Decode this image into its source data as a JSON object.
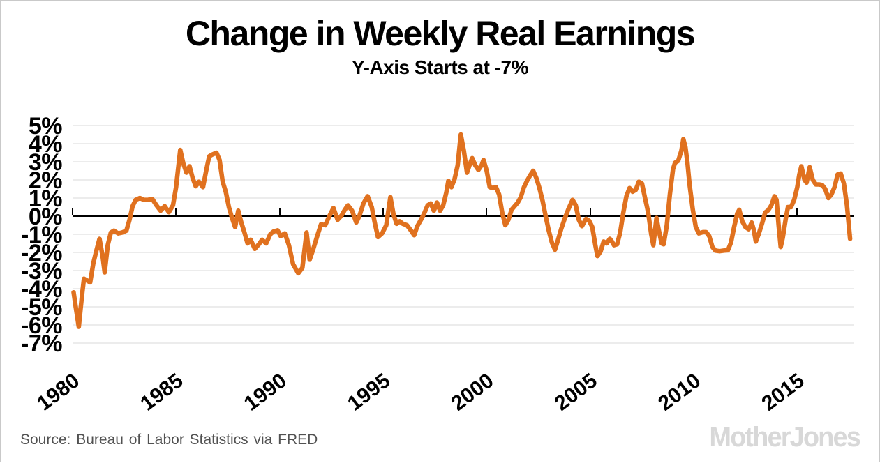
{
  "header": {
    "title": "Change in Weekly Real Earnings",
    "subtitle": "Y-Axis Starts at -7%"
  },
  "footer": {
    "source": "Source: Bureau of Labor Statistics via FRED",
    "logo": "MotherJones"
  },
  "chart_data": {
    "type": "line",
    "title": "Change in Weekly Real Earnings",
    "subtitle": "Y-Axis Starts at -7%",
    "xlabel": "",
    "ylabel": "",
    "xlim": [
      1980,
      2017.75
    ],
    "ylim": [
      -7,
      5
    ],
    "grid": "horizontal",
    "zero_axis": true,
    "x_ticks": [
      1980,
      1985,
      1990,
      1995,
      2000,
      2005,
      2010,
      2015
    ],
    "x_tick_labels": [
      "1980",
      "1985",
      "1990",
      "1995",
      "2000",
      "2005",
      "2010",
      "2015"
    ],
    "y_ticks": [
      5,
      4,
      3,
      2,
      1,
      0,
      -1,
      -2,
      -3,
      -4,
      -5,
      -6,
      -7
    ],
    "y_tick_labels": [
      "5%",
      "4%",
      "3%",
      "2%",
      "1%",
      "0%",
      "-1%",
      "-2%",
      "-3%",
      "-4%",
      "-5%",
      "-6%",
      "-7%"
    ],
    "colors": {
      "series": "#E0711F",
      "axis": "#000000",
      "grid": "#D9D9D9"
    },
    "series": [
      {
        "name": "Change in weekly real earnings (year-over-year %)",
        "color": "#E0711F",
        "points": [
          [
            1980.05,
            -4.2
          ],
          [
            1980.15,
            -5.0
          ],
          [
            1980.3,
            -6.1
          ],
          [
            1980.45,
            -4.4
          ],
          [
            1980.55,
            -3.45
          ],
          [
            1980.7,
            -3.55
          ],
          [
            1980.85,
            -3.65
          ],
          [
            1981.0,
            -2.6
          ],
          [
            1981.15,
            -1.9
          ],
          [
            1981.3,
            -1.25
          ],
          [
            1981.45,
            -2.2
          ],
          [
            1981.55,
            -3.1
          ],
          [
            1981.7,
            -1.6
          ],
          [
            1981.85,
            -0.9
          ],
          [
            1982.0,
            -0.8
          ],
          [
            1982.2,
            -0.95
          ],
          [
            1982.4,
            -0.9
          ],
          [
            1982.6,
            -0.8
          ],
          [
            1982.75,
            -0.2
          ],
          [
            1982.9,
            0.55
          ],
          [
            1983.05,
            0.9
          ],
          [
            1983.25,
            1.0
          ],
          [
            1983.45,
            0.9
          ],
          [
            1983.65,
            0.9
          ],
          [
            1983.85,
            0.95
          ],
          [
            1984.05,
            0.6
          ],
          [
            1984.25,
            0.3
          ],
          [
            1984.45,
            0.55
          ],
          [
            1984.65,
            0.22
          ],
          [
            1984.85,
            0.6
          ],
          [
            1985.0,
            1.6
          ],
          [
            1985.2,
            3.65
          ],
          [
            1985.35,
            2.9
          ],
          [
            1985.5,
            2.4
          ],
          [
            1985.65,
            2.75
          ],
          [
            1985.8,
            2.1
          ],
          [
            1985.95,
            1.65
          ],
          [
            1986.1,
            1.9
          ],
          [
            1986.3,
            1.6
          ],
          [
            1986.45,
            2.5
          ],
          [
            1986.6,
            3.3
          ],
          [
            1986.75,
            3.4
          ],
          [
            1986.95,
            3.5
          ],
          [
            1987.1,
            3.1
          ],
          [
            1987.25,
            1.9
          ],
          [
            1987.4,
            1.35
          ],
          [
            1987.55,
            0.5
          ],
          [
            1987.7,
            -0.1
          ],
          [
            1987.85,
            -0.6
          ],
          [
            1988.0,
            0.3
          ],
          [
            1988.15,
            -0.35
          ],
          [
            1988.3,
            -0.9
          ],
          [
            1988.45,
            -1.5
          ],
          [
            1988.6,
            -1.3
          ],
          [
            1988.8,
            -1.8
          ],
          [
            1989.0,
            -1.55
          ],
          [
            1989.15,
            -1.3
          ],
          [
            1989.35,
            -1.5
          ],
          [
            1989.55,
            -1.0
          ],
          [
            1989.7,
            -0.85
          ],
          [
            1989.9,
            -0.78
          ],
          [
            1990.05,
            -1.1
          ],
          [
            1990.25,
            -0.95
          ],
          [
            1990.45,
            -1.6
          ],
          [
            1990.65,
            -2.65
          ],
          [
            1990.9,
            -3.15
          ],
          [
            1991.1,
            -2.85
          ],
          [
            1991.3,
            -0.9
          ],
          [
            1991.45,
            -2.4
          ],
          [
            1991.6,
            -1.9
          ],
          [
            1991.8,
            -1.15
          ],
          [
            1992.0,
            -0.45
          ],
          [
            1992.2,
            -0.5
          ],
          [
            1992.4,
            0.0
          ],
          [
            1992.6,
            0.45
          ],
          [
            1992.8,
            -0.2
          ],
          [
            1993.0,
            0.05
          ],
          [
            1993.15,
            0.35
          ],
          [
            1993.3,
            0.6
          ],
          [
            1993.5,
            0.3
          ],
          [
            1993.7,
            -0.35
          ],
          [
            1993.85,
            0.0
          ],
          [
            1994.05,
            0.7
          ],
          [
            1994.25,
            1.1
          ],
          [
            1994.45,
            0.5
          ],
          [
            1994.6,
            -0.4
          ],
          [
            1994.75,
            -1.15
          ],
          [
            1994.95,
            -0.95
          ],
          [
            1995.15,
            -0.5
          ],
          [
            1995.35,
            1.05
          ],
          [
            1995.5,
            0.1
          ],
          [
            1995.65,
            -0.42
          ],
          [
            1995.8,
            -0.28
          ],
          [
            1995.95,
            -0.42
          ],
          [
            1996.15,
            -0.5
          ],
          [
            1996.35,
            -0.8
          ],
          [
            1996.5,
            -1.05
          ],
          [
            1996.65,
            -0.55
          ],
          [
            1996.85,
            -0.15
          ],
          [
            1997.0,
            0.2
          ],
          [
            1997.15,
            0.6
          ],
          [
            1997.3,
            0.7
          ],
          [
            1997.45,
            0.3
          ],
          [
            1997.6,
            0.75
          ],
          [
            1997.75,
            0.3
          ],
          [
            1997.9,
            0.6
          ],
          [
            1998.05,
            1.3
          ],
          [
            1998.15,
            1.95
          ],
          [
            1998.3,
            1.6
          ],
          [
            1998.45,
            2.05
          ],
          [
            1998.6,
            2.8
          ],
          [
            1998.75,
            4.5
          ],
          [
            1998.9,
            3.6
          ],
          [
            1999.05,
            2.4
          ],
          [
            1999.2,
            2.9
          ],
          [
            1999.3,
            3.2
          ],
          [
            1999.45,
            2.8
          ],
          [
            1999.6,
            2.55
          ],
          [
            1999.75,
            2.8
          ],
          [
            1999.85,
            3.1
          ],
          [
            2000.0,
            2.5
          ],
          [
            2000.15,
            1.6
          ],
          [
            2000.3,
            1.55
          ],
          [
            2000.45,
            1.6
          ],
          [
            2000.6,
            1.2
          ],
          [
            2000.75,
            0.2
          ],
          [
            2000.9,
            -0.5
          ],
          [
            2001.05,
            -0.2
          ],
          [
            2001.2,
            0.35
          ],
          [
            2001.35,
            0.55
          ],
          [
            2001.5,
            0.75
          ],
          [
            2001.65,
            1.05
          ],
          [
            2001.8,
            1.6
          ],
          [
            2001.95,
            1.95
          ],
          [
            2002.1,
            2.25
          ],
          [
            2002.25,
            2.5
          ],
          [
            2002.4,
            2.1
          ],
          [
            2002.55,
            1.55
          ],
          [
            2002.7,
            0.85
          ],
          [
            2002.85,
            0.0
          ],
          [
            2003.0,
            -0.8
          ],
          [
            2003.15,
            -1.45
          ],
          [
            2003.3,
            -1.85
          ],
          [
            2003.45,
            -1.3
          ],
          [
            2003.6,
            -0.7
          ],
          [
            2003.75,
            -0.2
          ],
          [
            2003.95,
            0.4
          ],
          [
            2004.15,
            0.9
          ],
          [
            2004.3,
            0.6
          ],
          [
            2004.45,
            -0.2
          ],
          [
            2004.6,
            -0.55
          ],
          [
            2004.8,
            -0.15
          ],
          [
            2004.95,
            -0.25
          ],
          [
            2005.1,
            -0.6
          ],
          [
            2005.25,
            -1.6
          ],
          [
            2005.35,
            -2.2
          ],
          [
            2005.5,
            -1.95
          ],
          [
            2005.65,
            -1.4
          ],
          [
            2005.8,
            -1.5
          ],
          [
            2005.95,
            -1.25
          ],
          [
            2006.05,
            -1.4
          ],
          [
            2006.15,
            -1.6
          ],
          [
            2006.3,
            -1.55
          ],
          [
            2006.45,
            -0.9
          ],
          [
            2006.6,
            0.2
          ],
          [
            2006.75,
            1.1
          ],
          [
            2006.9,
            1.55
          ],
          [
            2007.05,
            1.35
          ],
          [
            2007.2,
            1.45
          ],
          [
            2007.35,
            1.9
          ],
          [
            2007.5,
            1.8
          ],
          [
            2007.65,
            1.0
          ],
          [
            2007.8,
            0.2
          ],
          [
            2007.95,
            -1.0
          ],
          [
            2008.05,
            -1.6
          ],
          [
            2008.2,
            -0.1
          ],
          [
            2008.3,
            -0.7
          ],
          [
            2008.45,
            -1.5
          ],
          [
            2008.55,
            -1.55
          ],
          [
            2008.7,
            -0.5
          ],
          [
            2008.85,
            1.2
          ],
          [
            2009.0,
            2.6
          ],
          [
            2009.1,
            2.95
          ],
          [
            2009.25,
            3.05
          ],
          [
            2009.4,
            3.6
          ],
          [
            2009.5,
            4.25
          ],
          [
            2009.6,
            3.8
          ],
          [
            2009.7,
            2.9
          ],
          [
            2009.8,
            1.75
          ],
          [
            2009.95,
            0.4
          ],
          [
            2010.1,
            -0.6
          ],
          [
            2010.25,
            -0.95
          ],
          [
            2010.45,
            -0.88
          ],
          [
            2010.6,
            -0.88
          ],
          [
            2010.75,
            -1.1
          ],
          [
            2010.9,
            -1.7
          ],
          [
            2011.05,
            -1.9
          ],
          [
            2011.25,
            -1.93
          ],
          [
            2011.45,
            -1.9
          ],
          [
            2011.65,
            -1.88
          ],
          [
            2011.8,
            -1.45
          ],
          [
            2011.95,
            -0.6
          ],
          [
            2012.1,
            0.15
          ],
          [
            2012.2,
            0.35
          ],
          [
            2012.35,
            -0.3
          ],
          [
            2012.5,
            -0.6
          ],
          [
            2012.65,
            -0.72
          ],
          [
            2012.8,
            -0.35
          ],
          [
            2012.9,
            -0.75
          ],
          [
            2013.0,
            -1.4
          ],
          [
            2013.15,
            -0.95
          ],
          [
            2013.3,
            -0.4
          ],
          [
            2013.45,
            0.2
          ],
          [
            2013.6,
            0.33
          ],
          [
            2013.75,
            0.6
          ],
          [
            2013.9,
            1.1
          ],
          [
            2014.0,
            0.9
          ],
          [
            2014.1,
            -0.5
          ],
          [
            2014.2,
            -1.7
          ],
          [
            2014.3,
            -1.2
          ],
          [
            2014.45,
            -0.1
          ],
          [
            2014.55,
            0.5
          ],
          [
            2014.7,
            0.5
          ],
          [
            2014.85,
            0.9
          ],
          [
            2015.0,
            1.6
          ],
          [
            2015.1,
            2.3
          ],
          [
            2015.2,
            2.75
          ],
          [
            2015.35,
            2.0
          ],
          [
            2015.45,
            1.85
          ],
          [
            2015.6,
            2.7
          ],
          [
            2015.75,
            2.0
          ],
          [
            2015.9,
            1.75
          ],
          [
            2016.05,
            1.75
          ],
          [
            2016.2,
            1.72
          ],
          [
            2016.35,
            1.5
          ],
          [
            2016.5,
            1.0
          ],
          [
            2016.65,
            1.2
          ],
          [
            2016.8,
            1.6
          ],
          [
            2016.95,
            2.3
          ],
          [
            2017.1,
            2.35
          ],
          [
            2017.25,
            1.8
          ],
          [
            2017.4,
            0.6
          ],
          [
            2017.55,
            -1.25
          ]
        ]
      }
    ]
  }
}
